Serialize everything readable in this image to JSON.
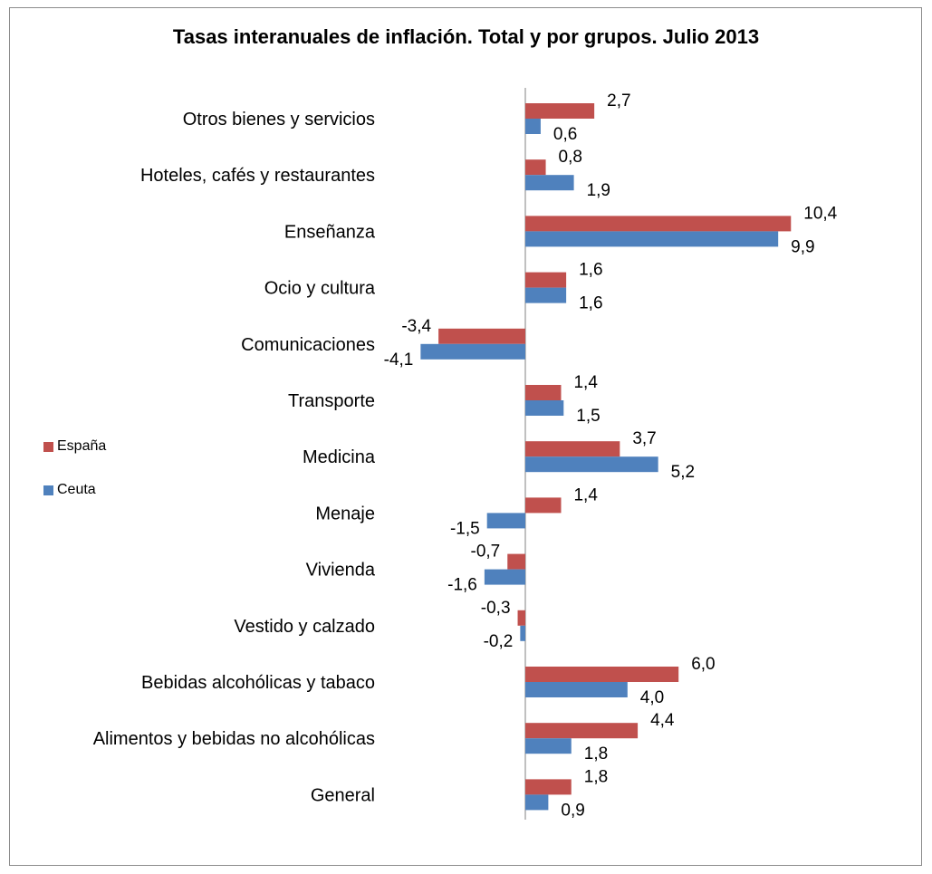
{
  "chart_data": {
    "type": "bar",
    "orientation": "horizontal",
    "title": "Tasas interanuales de inflación. Total y por grupos. Julio 2013",
    "categories": [
      "Otros bienes y servicios",
      "Hoteles, cafés y restaurantes",
      "Enseñanza",
      "Ocio y cultura",
      "Comunicaciones",
      "Transporte",
      "Medicina",
      "Menaje",
      "Vivienda",
      "Vestido y calzado",
      "Bebidas alcohólicas y tabaco",
      "Alimentos y bebidas no alcohólicas",
      "General"
    ],
    "series": [
      {
        "name": "España",
        "color": "#c0504d",
        "values": [
          2.7,
          0.8,
          10.4,
          1.6,
          -3.4,
          1.4,
          3.7,
          1.4,
          -0.7,
          -0.3,
          6.0,
          4.4,
          1.8
        ],
        "labels": [
          "2,7",
          "0,8",
          "10,4",
          "1,6",
          "-3,4",
          "1,4",
          "3,7",
          "1,4",
          "-0,7",
          "-0,3",
          "6,0",
          "4,4",
          "1,8"
        ]
      },
      {
        "name": "Ceuta",
        "color": "#4f81bd",
        "values": [
          0.6,
          1.9,
          9.9,
          1.6,
          -4.1,
          1.5,
          5.2,
          -1.5,
          -1.6,
          -0.2,
          4.0,
          1.8,
          0.9
        ],
        "labels": [
          "0,6",
          "1,9",
          "9,9",
          "1,6",
          "-4,1",
          "1,5",
          "5,2",
          "-1,5",
          "-1,6",
          "-0,2",
          "4,0",
          "1,8",
          "0,9"
        ]
      }
    ],
    "legend_position": "left",
    "grid": false
  }
}
